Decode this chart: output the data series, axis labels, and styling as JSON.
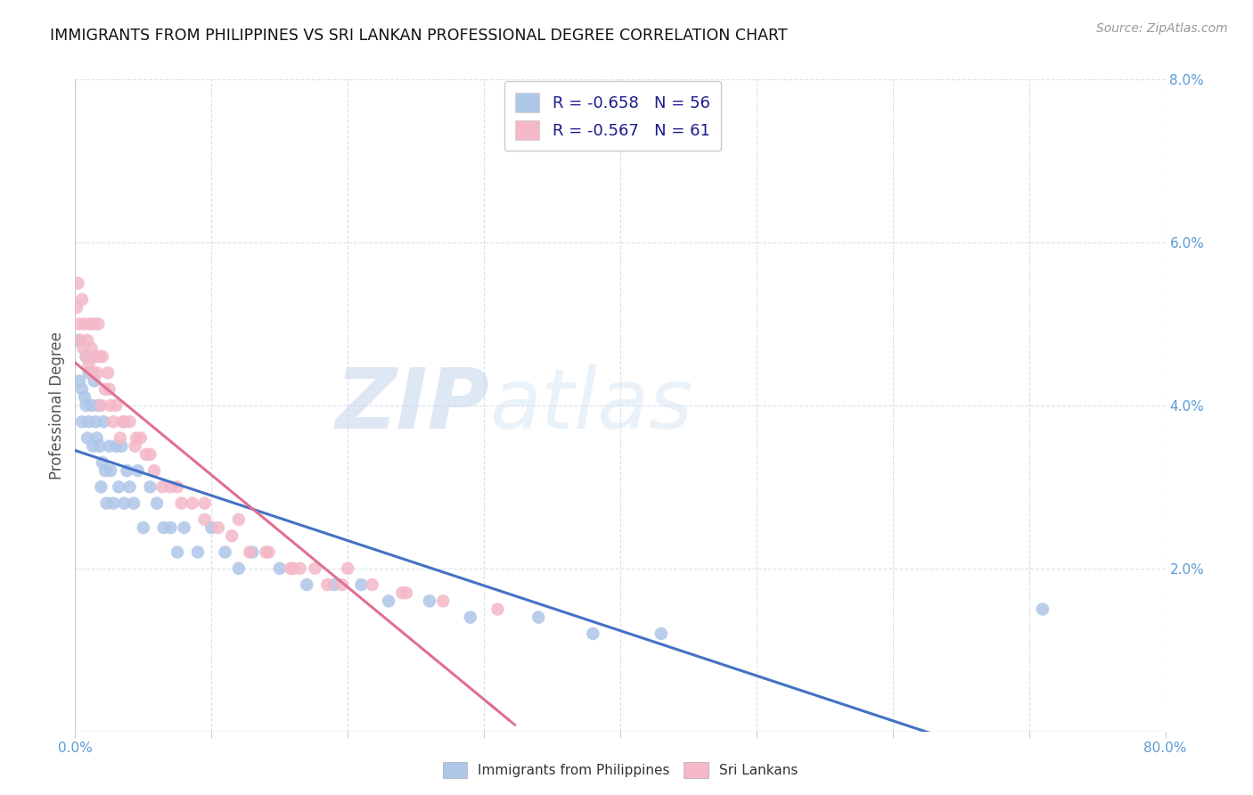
{
  "title": "IMMIGRANTS FROM PHILIPPINES VS SRI LANKAN PROFESSIONAL DEGREE CORRELATION CHART",
  "source": "Source: ZipAtlas.com",
  "ylabel": "Professional Degree",
  "x_min": 0.0,
  "x_max": 0.8,
  "y_min": 0.0,
  "y_max": 0.08,
  "x_ticks": [
    0.0,
    0.1,
    0.2,
    0.3,
    0.4,
    0.5,
    0.6,
    0.7,
    0.8
  ],
  "y_ticks": [
    0.0,
    0.02,
    0.04,
    0.06,
    0.08
  ],
  "color_philippines": "#aec6e8",
  "color_srilanka": "#f4b8c8",
  "line_color_philippines": "#4472c4",
  "line_color_srilanka": "#e07090",
  "R_philippines": -0.658,
  "N_philippines": 56,
  "R_srilanka": -0.567,
  "N_srilanka": 61,
  "watermark_zip": "ZIP",
  "watermark_atlas": "atlas",
  "philippines_x": [
    0.002,
    0.003,
    0.005,
    0.005,
    0.007,
    0.008,
    0.008,
    0.009,
    0.01,
    0.01,
    0.012,
    0.013,
    0.014,
    0.015,
    0.016,
    0.017,
    0.018,
    0.019,
    0.02,
    0.021,
    0.022,
    0.023,
    0.025,
    0.026,
    0.028,
    0.03,
    0.032,
    0.034,
    0.036,
    0.038,
    0.04,
    0.043,
    0.046,
    0.05,
    0.055,
    0.06,
    0.065,
    0.07,
    0.075,
    0.08,
    0.09,
    0.1,
    0.11,
    0.12,
    0.13,
    0.15,
    0.17,
    0.19,
    0.21,
    0.23,
    0.26,
    0.29,
    0.34,
    0.38,
    0.43,
    0.71
  ],
  "philippines_y": [
    0.048,
    0.043,
    0.042,
    0.038,
    0.041,
    0.046,
    0.04,
    0.036,
    0.044,
    0.038,
    0.04,
    0.035,
    0.043,
    0.038,
    0.036,
    0.04,
    0.035,
    0.03,
    0.033,
    0.038,
    0.032,
    0.028,
    0.035,
    0.032,
    0.028,
    0.035,
    0.03,
    0.035,
    0.028,
    0.032,
    0.03,
    0.028,
    0.032,
    0.025,
    0.03,
    0.028,
    0.025,
    0.025,
    0.022,
    0.025,
    0.022,
    0.025,
    0.022,
    0.02,
    0.022,
    0.02,
    0.018,
    0.018,
    0.018,
    0.016,
    0.016,
    0.014,
    0.014,
    0.012,
    0.012,
    0.015
  ],
  "srilanka_x": [
    0.001,
    0.002,
    0.003,
    0.004,
    0.005,
    0.006,
    0.007,
    0.008,
    0.009,
    0.01,
    0.011,
    0.012,
    0.013,
    0.014,
    0.015,
    0.016,
    0.017,
    0.018,
    0.019,
    0.02,
    0.022,
    0.024,
    0.026,
    0.028,
    0.03,
    0.033,
    0.036,
    0.04,
    0.044,
    0.048,
    0.052,
    0.058,
    0.064,
    0.07,
    0.078,
    0.086,
    0.095,
    0.105,
    0.115,
    0.128,
    0.142,
    0.158,
    0.176,
    0.196,
    0.218,
    0.243,
    0.27,
    0.12,
    0.2,
    0.24,
    0.14,
    0.165,
    0.185,
    0.095,
    0.31,
    0.16,
    0.075,
    0.055,
    0.045,
    0.025,
    0.035
  ],
  "srilanka_y": [
    0.052,
    0.055,
    0.05,
    0.048,
    0.053,
    0.047,
    0.05,
    0.046,
    0.048,
    0.045,
    0.05,
    0.047,
    0.044,
    0.05,
    0.046,
    0.044,
    0.05,
    0.046,
    0.04,
    0.046,
    0.042,
    0.044,
    0.04,
    0.038,
    0.04,
    0.036,
    0.038,
    0.038,
    0.035,
    0.036,
    0.034,
    0.032,
    0.03,
    0.03,
    0.028,
    0.028,
    0.026,
    0.025,
    0.024,
    0.022,
    0.022,
    0.02,
    0.02,
    0.018,
    0.018,
    0.017,
    0.016,
    0.026,
    0.02,
    0.017,
    0.022,
    0.02,
    0.018,
    0.028,
    0.015,
    0.02,
    0.03,
    0.034,
    0.036,
    0.042,
    0.038
  ]
}
